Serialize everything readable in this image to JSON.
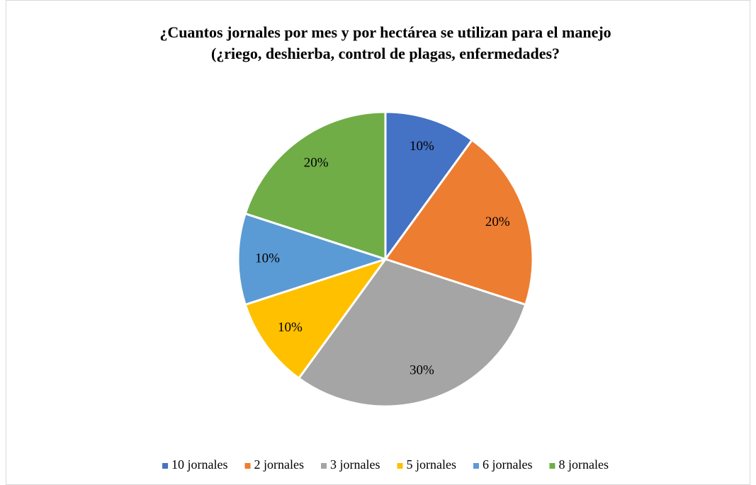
{
  "chart_data": {
    "type": "pie",
    "title": [
      "¿Cuantos jornales por mes y por hectárea se utilizan para el manejo",
      "(¿riego, deshierba, control de plagas, enfermedades?"
    ],
    "categories": [
      "10 jornales",
      "2 jornales",
      "3 jornales",
      "5 jornales",
      "6 jornales",
      "8 jornales"
    ],
    "values": [
      10,
      20,
      30,
      10,
      10,
      20
    ],
    "value_labels": [
      "10%",
      "20%",
      "30%",
      "10%",
      "10%",
      "20%"
    ],
    "colors": [
      "#4472c4",
      "#ed7d31",
      "#a5a5a5",
      "#ffc000",
      "#5b9bd5",
      "#70ad47"
    ],
    "legend": "bottom"
  }
}
